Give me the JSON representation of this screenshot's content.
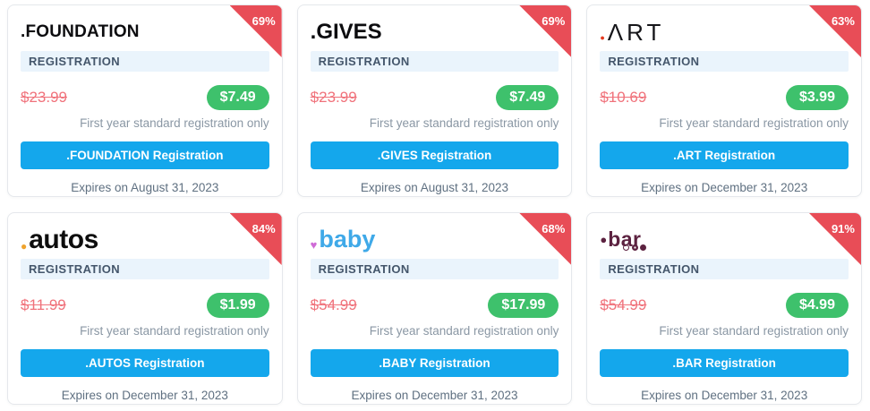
{
  "colors": {
    "page_bg": "#ffffff",
    "card_bg": "#ffffff",
    "card_border": "#e5e8ec",
    "ribbon_red": "#e84d57",
    "old_price_red": "#f0727b",
    "deal_green": "#3ec16c",
    "cta_blue": "#14a7ec",
    "label_bg": "#eaf4fc",
    "label_text": "#44566b",
    "note_gray": "#8a97a4",
    "expires_gray": "#5f7081"
  },
  "shared": {
    "category_label": "REGISTRATION",
    "note": "First year standard registration only"
  },
  "cards": [
    {
      "key": "foundation",
      "discount": "69%",
      "logo": {
        "variant": "foundation",
        "text": ".FOUNDATION",
        "color": "#0c0c0f"
      },
      "old_price": "$23.99",
      "new_price": "$7.49",
      "cta": ".FOUNDATION Registration",
      "expires": "Expires on August 31, 2023"
    },
    {
      "key": "gives",
      "discount": "69%",
      "logo": {
        "variant": "gives",
        "text": ".GIVES",
        "color": "#0c0c0f"
      },
      "old_price": "$23.99",
      "new_price": "$7.49",
      "cta": ".GIVES Registration",
      "expires": "Expires on August 31, 2023"
    },
    {
      "key": "art",
      "discount": "63%",
      "logo": {
        "variant": "art",
        "prefix": "●",
        "prefix_color": "#e43a1f",
        "text": "ΛRT",
        "color": "#16161a"
      },
      "old_price": "$10.69",
      "new_price": "$3.99",
      "cta": ".ART Registration",
      "expires": "Expires on December 31, 2023"
    },
    {
      "key": "autos",
      "discount": "84%",
      "logo": {
        "variant": "autos",
        "prefix": "●",
        "prefix_color": "#efa32d",
        "text": "autos",
        "color": "#0d0d0d"
      },
      "old_price": "$11.99",
      "new_price": "$1.99",
      "cta": ".AUTOS Registration",
      "expires": "Expires on December 31, 2023"
    },
    {
      "key": "baby",
      "discount": "68%",
      "logo": {
        "variant": "baby",
        "prefix": "♥",
        "prefix_color": "#cf6bd6",
        "text": "baby",
        "color": "#3fa9e8"
      },
      "old_price": "$54.99",
      "new_price": "$17.99",
      "cta": ".BABY Registration",
      "expires": "Expires on December 31, 2023"
    },
    {
      "key": "bar",
      "discount": "91%",
      "logo": {
        "variant": "bar",
        "prefix": "●",
        "prefix_color": "#5c2240",
        "text": "bar",
        "color": "#5c2240",
        "circles": true
      },
      "old_price": "$54.99",
      "new_price": "$4.99",
      "cta": ".BAR Registration",
      "expires": "Expires on December 31, 2023"
    }
  ]
}
